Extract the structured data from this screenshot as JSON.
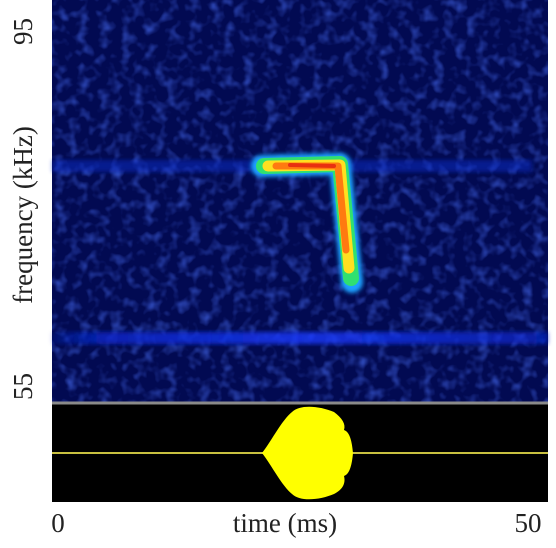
{
  "chart_data": {
    "type": "spectrogram",
    "xlabel": "time (ms)",
    "ylabel": "frequency (kHz)",
    "xlim": [
      0,
      50
    ],
    "xticks": [
      0,
      50
    ],
    "ylim": [
      55,
      95
    ],
    "yticks": [
      55,
      95
    ]
  }
}
